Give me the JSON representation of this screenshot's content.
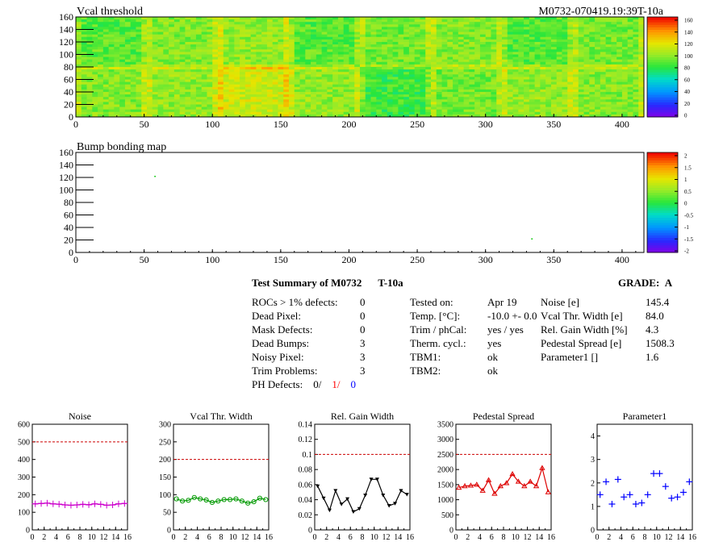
{
  "header": {
    "run_label": "M0732-070419.19:39T-10a"
  },
  "summary": {
    "title": "Test Summary of M0732",
    "title_suffix": "T-10a",
    "grade_label": "GRADE:",
    "grade_value": "A",
    "left": [
      {
        "label": "ROCs > 1% defects:",
        "value": "0"
      },
      {
        "label": "Dead Pixel:",
        "value": "0"
      },
      {
        "label": "Mask Defects:",
        "value": "0"
      },
      {
        "label": "Dead Bumps:",
        "value": "3"
      },
      {
        "label": "Noisy Pixel:",
        "value": "3"
      },
      {
        "label": "Trim Problems:",
        "value": "3"
      }
    ],
    "ph_defects": {
      "label": "PH Defects:",
      "v1": "0/",
      "v2": "1/",
      "v3": "0"
    },
    "middle": [
      {
        "label": "Tested on:",
        "value": "Apr 19"
      },
      {
        "label": "Temp. [°C]:",
        "value": "-10.0 +- 0.0"
      },
      {
        "label": "Trim / phCal:",
        "value": "yes / yes"
      },
      {
        "label": "Therm. cycl.:",
        "value": "yes"
      },
      {
        "label": "TBM1:",
        "value": "ok"
      },
      {
        "label": "TBM2:",
        "value": "ok"
      }
    ],
    "right": [
      {
        "label": "Noise [e]",
        "value": "145.4"
      },
      {
        "label": "Vcal Thr. Width [e]",
        "value": "84.0"
      },
      {
        "label": "Rel. Gain Width [%]",
        "value": "4.3"
      },
      {
        "label": "Pedestal Spread [e]",
        "value": "1508.3"
      },
      {
        "label": "Parameter1 []",
        "value": "1.6"
      }
    ]
  },
  "chart_data": [
    {
      "id": "vcal_map",
      "type": "heatmap",
      "title": "Vcal threshold",
      "xlim": [
        0,
        416
      ],
      "ylim": [
        0,
        160
      ],
      "xticks": [
        "0",
        "50",
        "100",
        "150",
        "200",
        "250",
        "300",
        "350",
        "400"
      ],
      "yticks": [
        "0",
        "20",
        "40",
        "60",
        "80",
        "100",
        "120",
        "140",
        "160"
      ],
      "z_ticks": [
        "0",
        "20",
        "40",
        "60",
        "80",
        "100",
        "120",
        "140",
        "160"
      ],
      "roc_mean_levels": {
        "top": [
          0.55,
          0.6,
          0.62,
          0.55,
          0.58,
          0.6,
          0.55,
          0.58
        ],
        "bottom": [
          0.6,
          0.62,
          0.7,
          0.62,
          0.52,
          0.58,
          0.62,
          0.6
        ]
      }
    },
    {
      "id": "bump_map",
      "type": "heatmap",
      "title": "Bump bonding map",
      "xlim": [
        0,
        416
      ],
      "ylim": [
        0,
        160
      ],
      "xticks": [
        "0",
        "50",
        "100",
        "150",
        "200",
        "250",
        "300",
        "350",
        "400"
      ],
      "yticks": [
        "0",
        "20",
        "40",
        "60",
        "80",
        "100",
        "120",
        "140",
        "160"
      ],
      "z_ticks": [
        "2",
        "1.5",
        "1",
        "0.5",
        "0",
        "-0.5",
        "-1",
        "-1.5",
        "-2"
      ],
      "points": [
        {
          "x": 58,
          "y": 122
        },
        {
          "x": 334,
          "y": 22
        }
      ]
    },
    {
      "id": "noise",
      "type": "line",
      "title": "Noise",
      "x": [
        0,
        1,
        2,
        3,
        4,
        5,
        6,
        7,
        8,
        9,
        10,
        11,
        12,
        13,
        14,
        15
      ],
      "values": [
        148,
        150,
        152,
        148,
        146,
        142,
        140,
        142,
        145,
        143,
        148,
        145,
        140,
        142,
        148,
        150
      ],
      "ylim": [
        0,
        600
      ],
      "yticks": [
        "0",
        "100",
        "200",
        "300",
        "400",
        "500",
        "600"
      ],
      "xticks": [
        "0",
        "2",
        "4",
        "6",
        "8",
        "10",
        "12",
        "14",
        "16"
      ],
      "reference": 500,
      "color": "#cc00cc",
      "marker": "plus"
    },
    {
      "id": "vcal_width",
      "type": "line",
      "title": "Vcal Thr. Width",
      "x": [
        0,
        1,
        2,
        3,
        4,
        5,
        6,
        7,
        8,
        9,
        10,
        11,
        12,
        13,
        14,
        15
      ],
      "values": [
        88,
        82,
        84,
        92,
        88,
        85,
        78,
        82,
        86,
        86,
        88,
        82,
        76,
        80,
        90,
        86
      ],
      "ylim": [
        0,
        300
      ],
      "yticks": [
        "0",
        "50",
        "100",
        "150",
        "200",
        "250",
        "300"
      ],
      "xticks": [
        "0",
        "2",
        "4",
        "6",
        "8",
        "10",
        "12",
        "14",
        "16"
      ],
      "reference": 200,
      "color": "#009900",
      "marker": "circle"
    },
    {
      "id": "rel_gain",
      "type": "line",
      "title": "Rel. Gain Width",
      "x": [
        0,
        1,
        2,
        3,
        4,
        5,
        6,
        7,
        8,
        9,
        10,
        11,
        12,
        13,
        14,
        15
      ],
      "values": [
        0.058,
        0.042,
        0.026,
        0.052,
        0.034,
        0.041,
        0.024,
        0.028,
        0.046,
        0.067,
        0.067,
        0.046,
        0.032,
        0.035,
        0.052,
        0.047
      ],
      "ylim": [
        0,
        0.14
      ],
      "yticks": [
        "0",
        "0.02",
        "0.04",
        "0.06",
        "0.08",
        "0.1",
        "0.12",
        "0.14"
      ],
      "xticks": [
        "0",
        "2",
        "4",
        "6",
        "8",
        "10",
        "12",
        "14",
        "16"
      ],
      "reference": 0.1,
      "color": "#000000",
      "marker": "triangle-down"
    },
    {
      "id": "pedestal",
      "type": "line",
      "title": "Pedestal Spread",
      "x": [
        0,
        1,
        2,
        3,
        4,
        5,
        6,
        7,
        8,
        9,
        10,
        11,
        12,
        13,
        14,
        15
      ],
      "values": [
        1400,
        1450,
        1470,
        1500,
        1300,
        1650,
        1200,
        1450,
        1550,
        1850,
        1600,
        1450,
        1600,
        1450,
        2050,
        1250
      ],
      "ylim": [
        0,
        3500
      ],
      "yticks": [
        "0",
        "500",
        "1000",
        "1500",
        "2000",
        "2500",
        "3000",
        "3500"
      ],
      "xticks": [
        "0",
        "2",
        "4",
        "6",
        "8",
        "10",
        "12",
        "14",
        "16"
      ],
      "reference": 2500,
      "color": "#dd0000",
      "marker": "triangle-up"
    },
    {
      "id": "parameter1",
      "type": "scatter",
      "title": "Parameter1",
      "x": [
        0,
        1,
        2,
        3,
        4,
        5,
        6,
        7,
        8,
        9,
        10,
        11,
        12,
        13,
        14,
        15
      ],
      "values": [
        1.5,
        2.05,
        1.1,
        2.15,
        1.4,
        1.5,
        1.1,
        1.15,
        1.5,
        2.4,
        2.4,
        1.85,
        1.35,
        1.4,
        1.6,
        2.05
      ],
      "ylim": [
        0,
        4.5
      ],
      "yticks": [
        "0",
        "1",
        "2",
        "3",
        "4"
      ],
      "xticks": [
        "0",
        "2",
        "4",
        "6",
        "8",
        "10",
        "12",
        "14",
        "16"
      ],
      "color": "#0000ff",
      "marker": "cross"
    }
  ]
}
